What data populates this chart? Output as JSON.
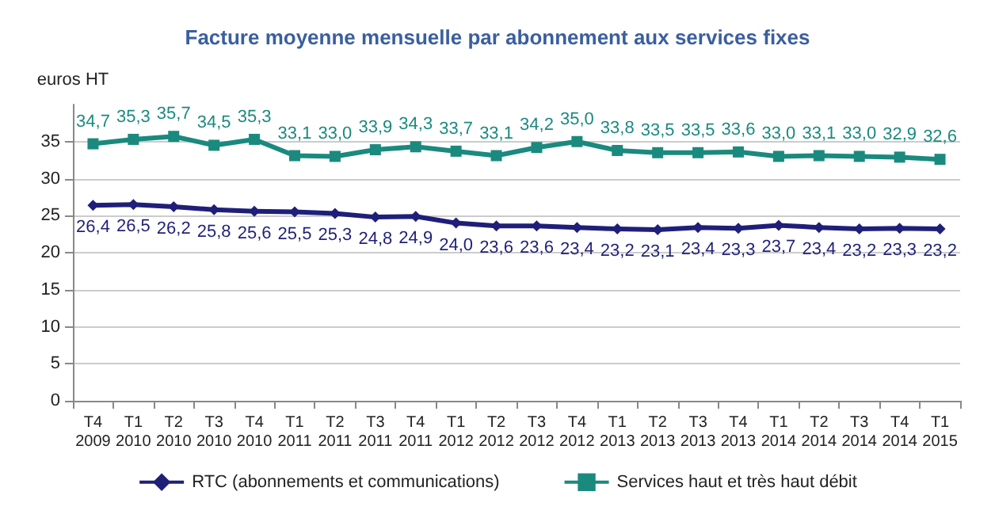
{
  "chart_data": {
    "type": "line",
    "title": "Facture moyenne mensuelle par abonnement aux services fixes",
    "ylabel": "euros HT",
    "categories": [
      "T4\n2009",
      "T1\n2010",
      "T2\n2010",
      "T3\n2010",
      "T4\n2010",
      "T1\n2011",
      "T2\n2011",
      "T3\n2011",
      "T4\n2011",
      "T1\n2012",
      "T2\n2012",
      "T3\n2012",
      "T4\n2012",
      "T1\n2013",
      "T2\n2013",
      "T3\n2013",
      "T4\n2013",
      "T1\n2014",
      "T2\n2014",
      "T3\n2014",
      "T4\n2014",
      "T1\n2015"
    ],
    "series": [
      {
        "name": "RTC (abonnements et communications)",
        "color": "#1f1f7a",
        "marker": "diamond",
        "values": [
          26.4,
          26.5,
          26.2,
          25.8,
          25.6,
          25.5,
          25.3,
          24.8,
          24.9,
          24.0,
          23.6,
          23.6,
          23.4,
          23.2,
          23.1,
          23.4,
          23.3,
          23.7,
          23.4,
          23.2,
          23.3,
          23.2
        ],
        "value_labels": [
          "26,4",
          "26,5",
          "26,2",
          "25,8",
          "25,6",
          "25,5",
          "25,3",
          "24,8",
          "24,9",
          "24,0",
          "23,6",
          "23,6",
          "23,4",
          "23,2",
          "23,1",
          "23,4",
          "23,3",
          "23,7",
          "23,4",
          "23,2",
          "23,3",
          "23,2"
        ]
      },
      {
        "name": "Services haut et très haut débit",
        "color": "#1a8a7f",
        "marker": "square",
        "values": [
          34.7,
          35.3,
          35.7,
          34.5,
          35.3,
          33.1,
          33.0,
          33.9,
          34.3,
          33.7,
          33.1,
          34.2,
          35.0,
          33.8,
          33.5,
          33.5,
          33.6,
          33.0,
          33.1,
          33.0,
          32.9,
          32.6
        ],
        "value_labels": [
          "34,7",
          "35,3",
          "35,7",
          "34,5",
          "35,3",
          "33,1",
          "33,0",
          "33,9",
          "34,3",
          "33,7",
          "33,1",
          "34,2",
          "35,0",
          "33,8",
          "33,5",
          "33,5",
          "33,6",
          "33,0",
          "33,1",
          "33,0",
          "32,9",
          "32,6"
        ]
      }
    ],
    "ylim": [
      0,
      40
    ],
    "yticks": [
      0,
      5,
      10,
      15,
      20,
      25,
      30,
      35
    ],
    "grid": "y",
    "legend": "bottom"
  }
}
